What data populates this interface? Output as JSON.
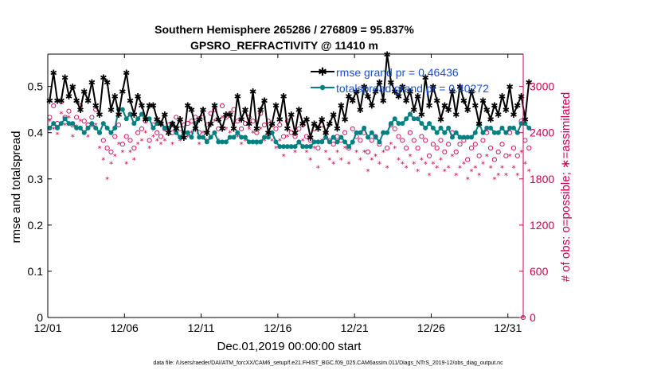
{
  "chart_data": {
    "type": "line",
    "title_line1": "Southern Hemisphere 265286 / 276809 = 95.837%",
    "title_line2": "GPSRO_REFRACTIVITY @ 11410 m",
    "xlabel": "Dec.01,2019 00:00:00 start",
    "ylabel_left": "rmse and totalspread",
    "ylabel_right": "# of obs: o=possible; ∗=assimilated",
    "footnote": "data file: /Users/raeder/DAI/ATM_forcXX/CAM6_setup/f.e21.FHIST_BGC.f09_025.CAM6assim.011/Diags_NTrS_2019-12/obs_diag_output.nc",
    "x_ticks": [
      "12/01",
      "12/06",
      "12/11",
      "12/16",
      "12/21",
      "12/26",
      "12/31"
    ],
    "x_tick_values": [
      0,
      5,
      10,
      15,
      20,
      25,
      30
    ],
    "xlim": [
      0,
      31
    ],
    "y_left_ticks": [
      "0",
      "0.1",
      "0.2",
      "0.3",
      "0.4",
      "0.5"
    ],
    "y_left_tick_values": [
      0,
      0.1,
      0.2,
      0.3,
      0.4,
      0.5
    ],
    "ylim_left": [
      0,
      0.57
    ],
    "y_right_ticks": [
      "0",
      "600",
      "1200",
      "1800",
      "2400",
      "3000"
    ],
    "y_right_tick_values": [
      0,
      600,
      1200,
      1800,
      2400,
      3000
    ],
    "ylim_right": [
      0,
      3420
    ],
    "colors": {
      "rmse": "#000000",
      "spread": "#008080",
      "obs": "#cc0055",
      "legend_text": "#1a4fd6"
    },
    "series": [
      {
        "name": "rmse grand pr = 0.46436",
        "axis": "left",
        "start": 0.125,
        "step": 0.25,
        "values": [
          0.47,
          0.53,
          0.47,
          0.47,
          0.52,
          0.48,
          0.5,
          0.47,
          0.45,
          0.49,
          0.47,
          0.51,
          0.46,
          0.44,
          0.52,
          0.51,
          0.45,
          0.48,
          0.44,
          0.49,
          0.53,
          0.47,
          0.44,
          0.48,
          0.46,
          0.43,
          0.46,
          0.46,
          0.43,
          0.42,
          0.44,
          0.4,
          0.42,
          0.41,
          0.43,
          0.39,
          0.46,
          0.45,
          0.41,
          0.43,
          0.45,
          0.4,
          0.42,
          0.46,
          0.43,
          0.41,
          0.44,
          0.44,
          0.41,
          0.48,
          0.43,
          0.45,
          0.42,
          0.49,
          0.41,
          0.45,
          0.47,
          0.4,
          0.42,
          0.46,
          0.43,
          0.48,
          0.41,
          0.44,
          0.4,
          0.45,
          0.42,
          0.43,
          0.39,
          0.42,
          0.41,
          0.43,
          0.4,
          0.42,
          0.44,
          0.41,
          0.46,
          0.43,
          0.48,
          0.47,
          0.49,
          0.45,
          0.5,
          0.48,
          0.46,
          0.49,
          0.51,
          0.47,
          0.57,
          0.51,
          0.49,
          0.48,
          0.5,
          0.47,
          0.49,
          0.45,
          0.48,
          0.44,
          0.52,
          0.46,
          0.5,
          0.47,
          0.43,
          0.46,
          0.45,
          0.49,
          0.44,
          0.5,
          0.47,
          0.45,
          0.49,
          0.46,
          0.42,
          0.47,
          0.45,
          0.43,
          0.46,
          0.44,
          0.48,
          0.45,
          0.5,
          0.44,
          0.46,
          0.48,
          0.43,
          0.51
        ]
      },
      {
        "name": "totalspread grand pr = 0.40272",
        "axis": "left",
        "start": 0.125,
        "step": 0.25,
        "values": [
          0.41,
          0.42,
          0.41,
          0.42,
          0.43,
          0.42,
          0.42,
          0.41,
          0.41,
          0.4,
          0.41,
          0.42,
          0.41,
          0.4,
          0.42,
          0.41,
          0.4,
          0.41,
          0.45,
          0.45,
          0.43,
          0.44,
          0.42,
          0.43,
          0.44,
          0.43,
          0.43,
          0.41,
          0.42,
          0.42,
          0.41,
          0.41,
          0.42,
          0.4,
          0.39,
          0.4,
          0.4,
          0.39,
          0.42,
          0.39,
          0.39,
          0.38,
          0.39,
          0.4,
          0.38,
          0.38,
          0.38,
          0.39,
          0.39,
          0.4,
          0.39,
          0.39,
          0.38,
          0.38,
          0.38,
          0.38,
          0.39,
          0.39,
          0.4,
          0.38,
          0.37,
          0.37,
          0.37,
          0.37,
          0.37,
          0.38,
          0.37,
          0.37,
          0.37,
          0.38,
          0.38,
          0.38,
          0.39,
          0.38,
          0.39,
          0.38,
          0.39,
          0.38,
          0.37,
          0.38,
          0.4,
          0.4,
          0.41,
          0.39,
          0.4,
          0.39,
          0.38,
          0.4,
          0.4,
          0.42,
          0.43,
          0.42,
          0.42,
          0.43,
          0.44,
          0.43,
          0.43,
          0.42,
          0.41,
          0.42,
          0.41,
          0.4,
          0.41,
          0.4,
          0.41,
          0.39,
          0.4,
          0.39,
          0.39,
          0.39,
          0.39,
          0.4,
          0.42,
          0.4,
          0.41,
          0.41,
          0.4,
          0.4,
          0.41,
          0.4,
          0.41,
          0.41,
          0.4,
          0.42,
          0.42,
          0.41
        ]
      },
      {
        "name": "possible",
        "axis": "right",
        "marker": "o",
        "start": 0.125,
        "step": 0.25,
        "values": [
          2600,
          2750,
          2520,
          2800,
          2600,
          2680,
          2500,
          2600,
          2750,
          2550,
          2500,
          2600,
          2700,
          2400,
          2300,
          2200,
          2150,
          2350,
          2500,
          2250,
          2350,
          2300,
          2200,
          2400,
          2450,
          2550,
          2300,
          2500,
          2400,
          2350,
          2450,
          2500,
          2400,
          2600,
          2450,
          2500,
          2520,
          2550,
          2600,
          2400,
          2600,
          2500,
          2650,
          2700,
          2450,
          2750,
          2600,
          2650,
          2700,
          2550,
          2450,
          2520,
          2600,
          2550,
          2400,
          2650,
          2500,
          2550,
          2500,
          2450,
          2500,
          2350,
          2550,
          2400,
          2350,
          2450,
          2500,
          2350,
          2300,
          2450,
          2200,
          2500,
          2400,
          2300,
          2250,
          2350,
          2300,
          2400,
          2200,
          2450,
          2350,
          2300,
          2400,
          2150,
          2300,
          2350,
          2250,
          2400,
          2200,
          2500,
          2450,
          2350,
          2300,
          2200,
          2400,
          2300,
          2200,
          2350,
          2300,
          2100,
          2250,
          2200,
          2300,
          2150,
          2250,
          2400,
          2150,
          2250,
          2300,
          2050,
          2200,
          2250,
          2100,
          2300,
          2400,
          2200,
          2050,
          2150,
          2250,
          2100,
          2400,
          2200,
          2100,
          2550,
          2300,
          2200
        ]
      },
      {
        "name": "assimilated",
        "axis": "right",
        "marker": "*",
        "start": 0.125,
        "step": 0.25,
        "values": [
          2550,
          2450,
          2380,
          2650,
          2500,
          2600,
          2350,
          2480,
          2550,
          2400,
          2350,
          2480,
          2500,
          2200,
          2050,
          1800,
          2000,
          2100,
          2250,
          2150,
          2000,
          2150,
          2050,
          2250,
          2300,
          2400,
          2200,
          2350,
          2300,
          2250,
          2300,
          2400,
          2250,
          2450,
          2300,
          2400,
          2350,
          2400,
          2450,
          2250,
          2400,
          2300,
          2500,
          2550,
          2300,
          2600,
          2450,
          2400,
          2500,
          2350,
          2250,
          2300,
          2450,
          2400,
          2250,
          2450,
          2300,
          2350,
          2300,
          2200,
          2300,
          2100,
          2350,
          2200,
          2150,
          2250,
          2300,
          2150,
          2050,
          2200,
          1950,
          2300,
          2150,
          2050,
          2000,
          2150,
          2050,
          2200,
          2000,
          2250,
          2150,
          2050,
          2150,
          1900,
          2050,
          2100,
          2000,
          2150,
          1950,
          2250,
          2200,
          2050,
          2000,
          1950,
          2100,
          2000,
          1900,
          2050,
          2000,
          1850,
          2000,
          1950,
          2050,
          1900,
          1950,
          2100,
          1850,
          1950,
          2000,
          1800,
          1900,
          1950,
          1850,
          2000,
          2100,
          1950,
          1800,
          1850,
          1950,
          1850,
          2100,
          1950,
          1850,
          2150,
          2000,
          1900
        ]
      }
    ],
    "extra_right_points": [
      {
        "x": 31.0,
        "y": 0,
        "marker": "o"
      },
      {
        "x": 31.0,
        "y": 0,
        "marker": "*"
      }
    ],
    "legend": [
      {
        "label": "rmse grand pr = 0.46436",
        "series": 0
      },
      {
        "label": "totalspread grand pr = 0.40272",
        "series": 1
      }
    ],
    "legend_position": "top-right"
  }
}
